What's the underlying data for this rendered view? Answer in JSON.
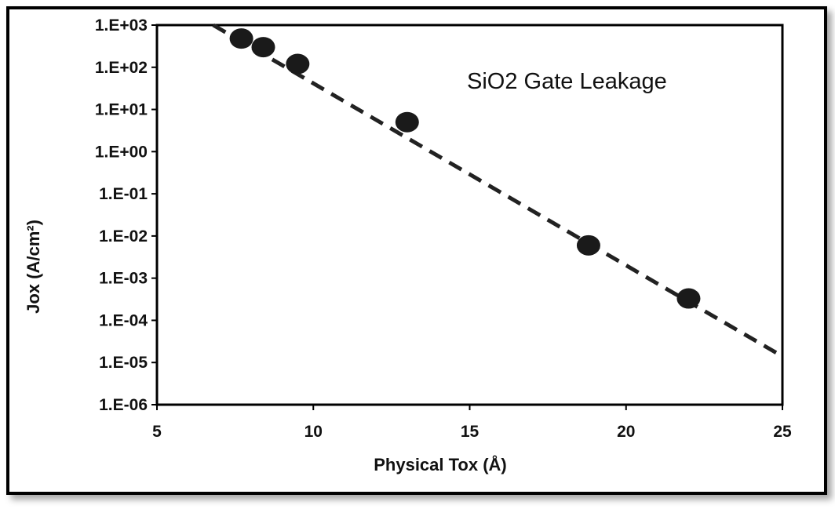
{
  "chart_data": {
    "type": "scatter",
    "title": "",
    "annotation": "SiO2 Gate Leakage",
    "xlabel": "Physical Tox (Å)",
    "ylabel": "Jox (A/cm²)",
    "xlim": [
      5,
      25
    ],
    "ylim": [
      1e-06,
      1000
    ],
    "yscale": "log",
    "grid": false,
    "x_ticks": [
      5,
      10,
      15,
      20,
      25
    ],
    "x_tick_labels": [
      "5",
      "10",
      "15",
      "20",
      "25"
    ],
    "y_ticks": [
      1e-06,
      1e-05,
      0.0001,
      0.001,
      0.01,
      0.1,
      1,
      10,
      100,
      1000
    ],
    "y_tick_labels": [
      "1.E-06",
      "1.E-05",
      "1.E-04",
      "1.E-03",
      "1.E-02",
      "1.E-01",
      "1.E+00",
      "1.E+01",
      "1.E+02",
      "1.E+03"
    ],
    "series": [
      {
        "type": "scatter",
        "marker": "filled-circle",
        "color": "#1a1a1a",
        "x": [
          7.7,
          8.4,
          9.5,
          13.0,
          18.8,
          22.0
        ],
        "y": [
          480,
          300,
          120,
          5,
          0.006,
          0.00033
        ]
      },
      {
        "type": "line",
        "style": "dashed",
        "color": "#222222",
        "x": [
          6.8,
          25.0
        ],
        "y": [
          1000,
          1.4e-05
        ]
      }
    ]
  }
}
